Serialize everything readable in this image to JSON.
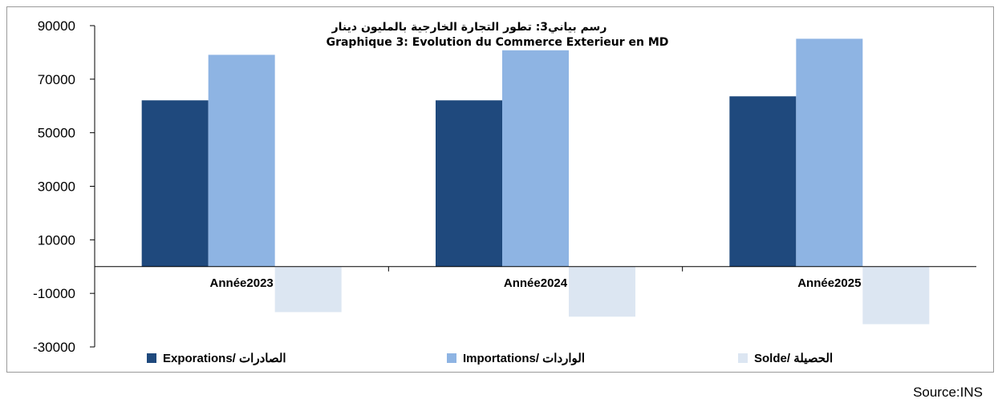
{
  "chart_data": {
    "type": "bar",
    "title_ar": "رسم بياني3:  تطور التجارة الخارجية بالمليون دينار",
    "title_fr": "Graphique 3: Evolution du Commerce Exterieur en MD",
    "categories": [
      "Année2023",
      "Année2024",
      "Année2025"
    ],
    "series": [
      {
        "name": "Exporations/  الصادرات",
        "color": "#1f497d",
        "values": [
          62100,
          62100,
          63600
        ]
      },
      {
        "name": "Importations/ الواردات",
        "color": "#8eb4e3",
        "values": [
          79100,
          80800,
          85100
        ]
      },
      {
        "name": "Solde/ الحصيلة",
        "color": "#dce6f2",
        "values": [
          -17000,
          -18700,
          -21500
        ]
      }
    ],
    "ylim": [
      -30000,
      90000
    ],
    "yticks": [
      90000,
      70000,
      50000,
      30000,
      10000,
      -10000,
      -30000
    ],
    "ytick_labels": [
      "90000",
      "70000",
      "50000",
      "30000",
      "10000",
      "-10000",
      "-30000"
    ],
    "legend_position": "bottom",
    "grid": false
  },
  "source": "Source:INS"
}
